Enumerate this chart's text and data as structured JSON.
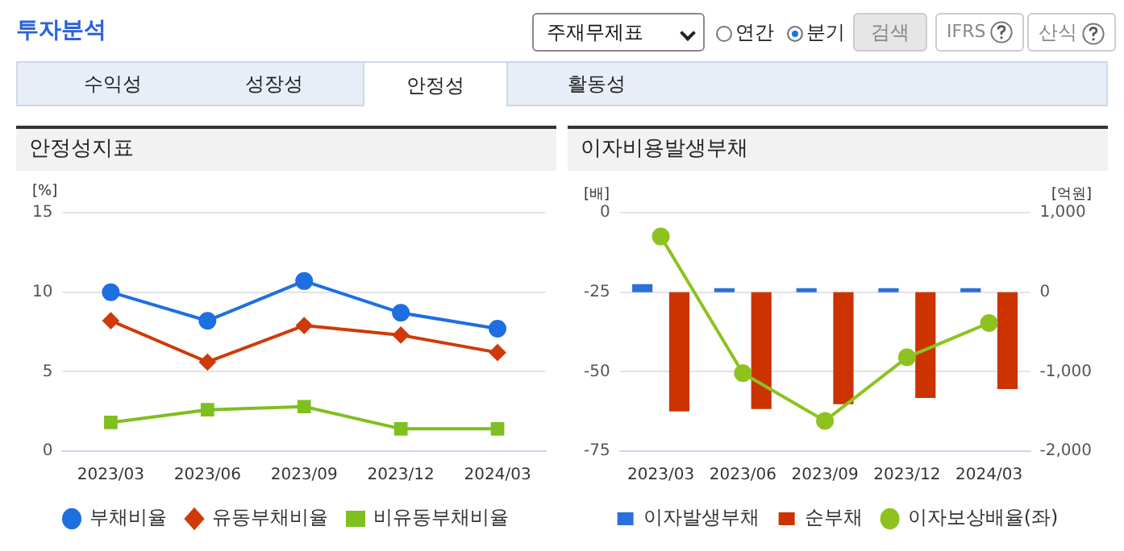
{
  "chart_data": [
    {
      "type": "other",
      "title": "투자분석",
      "annotations": [
        "주재무제표",
        "연간",
        "분기",
        "검색",
        "IFRS",
        "산식",
        "수익성",
        "성장성",
        "안정성",
        "활동성"
      ]
    },
    {
      "type": "line",
      "title": "안정성지표",
      "ylabel": "[%]",
      "categories": [
        "2023/03",
        "2023/06",
        "2023/09",
        "2023/12",
        "2024/03"
      ],
      "ylim": [
        0,
        15
      ],
      "yticks": [
        0,
        5,
        10,
        15
      ],
      "grid": "y",
      "legend": "bottom",
      "series": [
        {
          "name": "부채비율",
          "color": "#1e6fe0",
          "marker": "circle",
          "values": [
            10.0,
            8.2,
            10.7,
            8.7,
            7.7
          ]
        },
        {
          "name": "유동부채비율",
          "color": "#d03a0a",
          "marker": "diamond",
          "values": [
            8.2,
            5.6,
            7.9,
            7.3,
            6.2
          ]
        },
        {
          "name": "비유동부채비율",
          "color": "#7fbf1f",
          "marker": "square",
          "values": [
            1.8,
            2.6,
            2.8,
            1.4,
            1.4
          ]
        }
      ]
    },
    {
      "type": "bar",
      "title": "이자비용발생부채",
      "ylabel": "[배]",
      "y2label": "[억원]",
      "categories": [
        "2023/03",
        "2023/06",
        "2023/09",
        "2023/12",
        "2024/03"
      ],
      "ylim": [
        -75,
        0
      ],
      "yticks": [
        -75,
        -50,
        -25,
        0
      ],
      "y2lim": [
        -2000,
        1000
      ],
      "y2ticks": [
        {
          "value": -2000,
          "label": "-2,000"
        },
        {
          "value": -1000,
          "label": "-1,000"
        },
        0,
        {
          "value": 1000,
          "label": "1,000"
        }
      ],
      "grid": "y",
      "legend": "bottom",
      "series": [
        {
          "name": "이자발생부채",
          "color": "#2a6fdb",
          "axis": "y2",
          "values": [
            100,
            50,
            50,
            50,
            50
          ]
        },
        {
          "name": "순부채",
          "color": "#cc3300",
          "axis": "y2",
          "values": [
            -1500,
            -1470,
            -1410,
            -1330,
            -1220
          ]
        },
        {
          "name": "이자보상배율(좌)",
          "type": "line",
          "color": "#8dc21f",
          "marker": "circle",
          "values": [
            -7.5,
            -50.5,
            -65.5,
            -45.5,
            -34.7
          ]
        }
      ]
    }
  ]
}
